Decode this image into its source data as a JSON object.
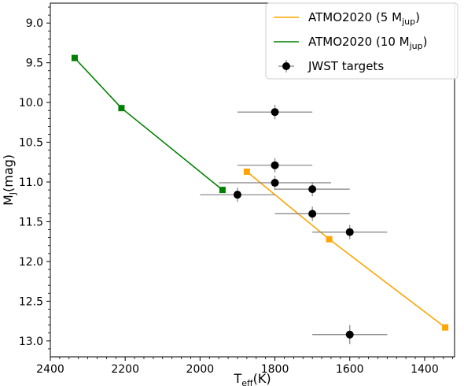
{
  "chart_data": {
    "type": "scatter",
    "xlabel": {
      "main": "T",
      "sub": "eff",
      "unit": "(K)"
    },
    "ylabel": {
      "main": "M",
      "sub": "J",
      "unit": "(mag)"
    },
    "xlim": [
      2400,
      1320
    ],
    "ylim": [
      13.2,
      8.75
    ],
    "x_inverted": true,
    "y_inverted": true,
    "xticks": [
      2400,
      2200,
      2000,
      1800,
      1600,
      1400
    ],
    "yticks": [
      9.0,
      9.5,
      10.0,
      10.5,
      11.0,
      11.5,
      12.0,
      12.5,
      13.0
    ],
    "ytick_labels": [
      "9.0",
      "9.5",
      "10.0",
      "10.5",
      "11.0",
      "11.5",
      "12.0",
      "12.5",
      "13.0"
    ],
    "grid": false,
    "legend_position": "top-right",
    "series": [
      {
        "name": "ATMO2020 (5 M",
        "name_sub": "jup",
        "name_end": ")",
        "kind": "line",
        "marker": "square",
        "color": "#FFA500",
        "x": [
          1875,
          1655,
          1345
        ],
        "y": [
          10.87,
          11.72,
          12.83
        ]
      },
      {
        "name": "ATMO2020 (10 M",
        "name_sub": "jup",
        "name_end": ")",
        "kind": "line",
        "marker": "square",
        "color": "#008000",
        "x": [
          2335,
          2210,
          1940
        ],
        "y": [
          9.44,
          10.07,
          11.1
        ]
      },
      {
        "name": "JWST targets",
        "kind": "errorbar",
        "marker": "circle",
        "color": "#000000",
        "errcolor": "#808080",
        "points": [
          {
            "x": 1800,
            "y": 10.12,
            "xerr": 100,
            "yerr": 0.09
          },
          {
            "x": 1800,
            "y": 10.79,
            "xerr": 100,
            "yerr": 0.09
          },
          {
            "x": 1800,
            "y": 11.01,
            "xerr": 150,
            "yerr": 0.09
          },
          {
            "x": 1900,
            "y": 11.16,
            "xerr": 100,
            "yerr": 0.09
          },
          {
            "x": 1700,
            "y": 11.09,
            "xerr": 100,
            "yerr": 0.09
          },
          {
            "x": 1700,
            "y": 11.4,
            "xerr": 100,
            "yerr": 0.09
          },
          {
            "x": 1600,
            "y": 11.63,
            "xerr": 100,
            "yerr": 0.09
          },
          {
            "x": 1600,
            "y": 12.92,
            "xerr": 100,
            "yerr": 0.12
          }
        ]
      }
    ]
  }
}
